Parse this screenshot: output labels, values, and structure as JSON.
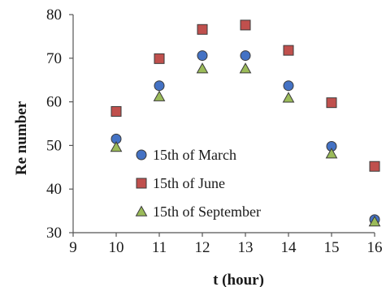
{
  "chart_data": {
    "type": "scatter",
    "xlabel": "t (hour)",
    "ylabel": "Re number",
    "xlim": [
      9,
      16
    ],
    "ylim": [
      30,
      80
    ],
    "x_ticks": [
      9,
      10,
      11,
      12,
      13,
      14,
      15,
      16
    ],
    "y_ticks": [
      30,
      40,
      50,
      60,
      70,
      80
    ],
    "grid": false,
    "legend_position": "bottom-center",
    "series": [
      {
        "name": "15th of March",
        "marker": "circle",
        "color": "#4472C4",
        "x": [
          10,
          11,
          12,
          13,
          14,
          15,
          16
        ],
        "y": [
          51.5,
          63.7,
          70.6,
          70.6,
          63.7,
          49.8,
          33.0
        ]
      },
      {
        "name": "15th of June",
        "marker": "square",
        "color": "#C0504D",
        "x": [
          10,
          11,
          12,
          13,
          14,
          15,
          16
        ],
        "y": [
          57.8,
          69.9,
          76.6,
          77.6,
          71.8,
          59.8,
          45.2
        ]
      },
      {
        "name": "15th of September",
        "marker": "triangle",
        "color": "#9BBB59",
        "x": [
          10,
          11,
          12,
          13,
          14,
          15,
          16
        ],
        "y": [
          49.6,
          61.2,
          67.6,
          67.6,
          60.9,
          48.1,
          32.5
        ]
      }
    ]
  }
}
